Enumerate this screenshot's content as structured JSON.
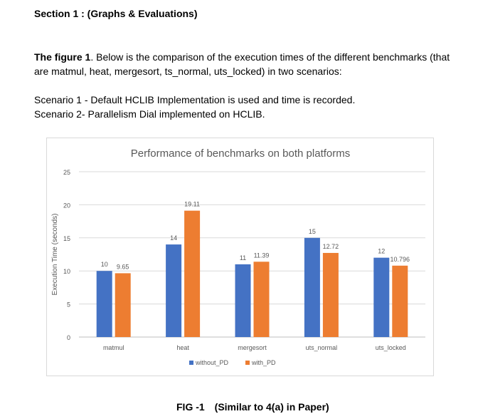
{
  "header": {
    "section_title": "Section 1 :  (Graphs & Evaluations)"
  },
  "intro": {
    "lead": "The figure 1",
    "text": ". Below is the comparison of the execution times of the different benchmarks (that are matmul, heat, mergesort, ts_normal, uts_locked) in two scenarios:"
  },
  "scenarios": [
    "Scenario 1 - Default HCLIB Implementation is used and time is recorded.",
    "Scenario 2-  Parallelism Dial implemented on HCLIB."
  ],
  "caption": {
    "left": "FIG -1",
    "right": "(Similar to 4(a) in Paper)"
  },
  "chart_data": {
    "type": "bar",
    "title": "Performance of benchmarks on both platforms",
    "xlabel": "",
    "ylabel": "Execution Time (seconds)",
    "ylim": [
      0,
      25
    ],
    "yticks": [
      "0",
      "5",
      "10",
      "15",
      "20",
      "25"
    ],
    "grid": true,
    "legend_position": "bottom",
    "categories": [
      "matmul",
      "heat",
      "mergesort",
      "uts_normal",
      "uts_locked"
    ],
    "series": [
      {
        "name": "without_PD",
        "color": "#4472c4",
        "values": [
          10,
          14,
          11,
          15,
          12
        ],
        "labels": [
          "10",
          "14",
          "11",
          "15",
          "12"
        ]
      },
      {
        "name": "with_PD",
        "color": "#ed7d31",
        "values": [
          9.65,
          19.11,
          11.39,
          12.72,
          10.796
        ],
        "labels": [
          "9.65",
          "19.11",
          "11.39",
          "12.72",
          "10.796"
        ]
      }
    ],
    "colors": {
      "text": "#595959",
      "grid": "#d9d9d9",
      "axis": "#bfbfbf"
    }
  }
}
